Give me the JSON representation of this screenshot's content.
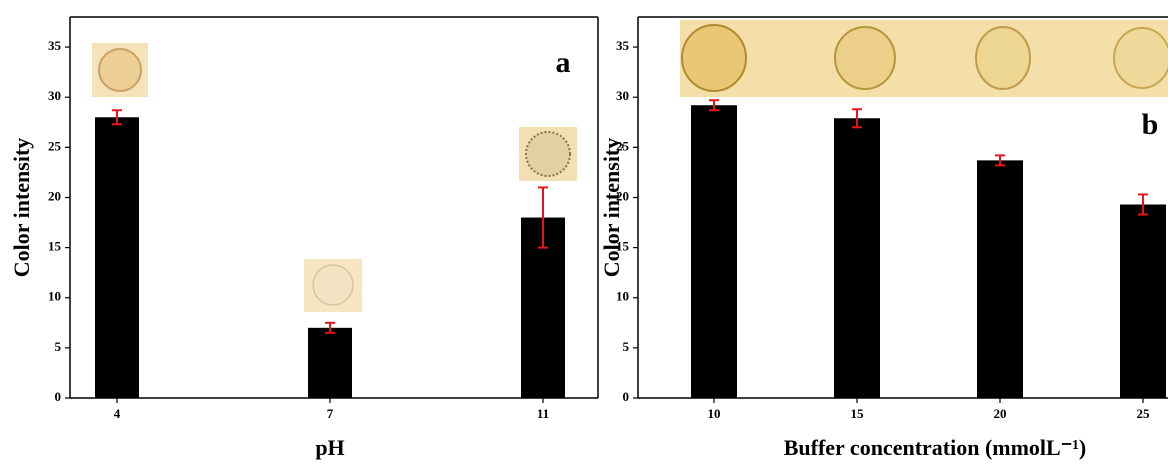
{
  "chart_data": [
    {
      "type": "bar",
      "panel_label": "a",
      "x_label": "pH",
      "y_label": "Color intensity",
      "categories": [
        "4",
        "7",
        "11"
      ],
      "values": [
        28,
        7,
        18
      ],
      "errors": [
        0.7,
        0.5,
        3
      ],
      "color": "#000000",
      "error_color": "#e8141b",
      "ylim": [
        0,
        38
      ],
      "yticks": [
        0,
        5,
        10,
        15,
        20,
        25,
        30,
        35
      ]
    },
    {
      "type": "bar",
      "panel_label": "b",
      "x_label": "Buffer concentration (mmolL⁻¹)",
      "y_label": "Color intensity",
      "categories": [
        "10",
        "15",
        "20",
        "25"
      ],
      "values": [
        29.2,
        27.9,
        23.7,
        19.3
      ],
      "errors": [
        0.5,
        0.9,
        0.5,
        1.0
      ],
      "color": "#000000",
      "error_color": "#e8141b",
      "ylim": [
        0,
        38
      ],
      "yticks": [
        0,
        5,
        10,
        15,
        20,
        25,
        30,
        35
      ]
    }
  ]
}
